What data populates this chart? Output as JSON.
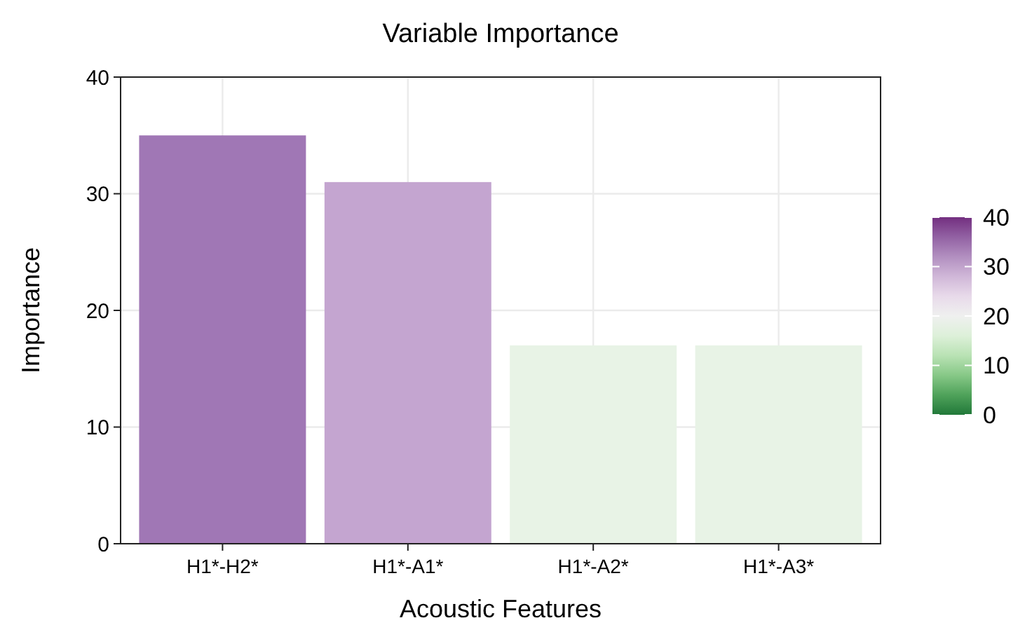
{
  "chart_data": {
    "type": "bar",
    "title": "Variable Importance",
    "xlabel": "Acoustic Features",
    "ylabel": "Importance",
    "categories": [
      "H1*-H2*",
      "H1*-A1*",
      "H1*-A2*",
      "H1*-A3*"
    ],
    "values": [
      35,
      31,
      17,
      17
    ],
    "colors": [
      "#a077b5",
      "#c4a5d0",
      "#e8f3e6",
      "#e8f3e6"
    ],
    "ylim": [
      0,
      40
    ],
    "yticks": [
      0,
      10,
      20,
      30,
      40
    ],
    "grid": true,
    "clim": [
      0,
      40
    ],
    "cticks": [
      0,
      10,
      20,
      30,
      40
    ]
  }
}
